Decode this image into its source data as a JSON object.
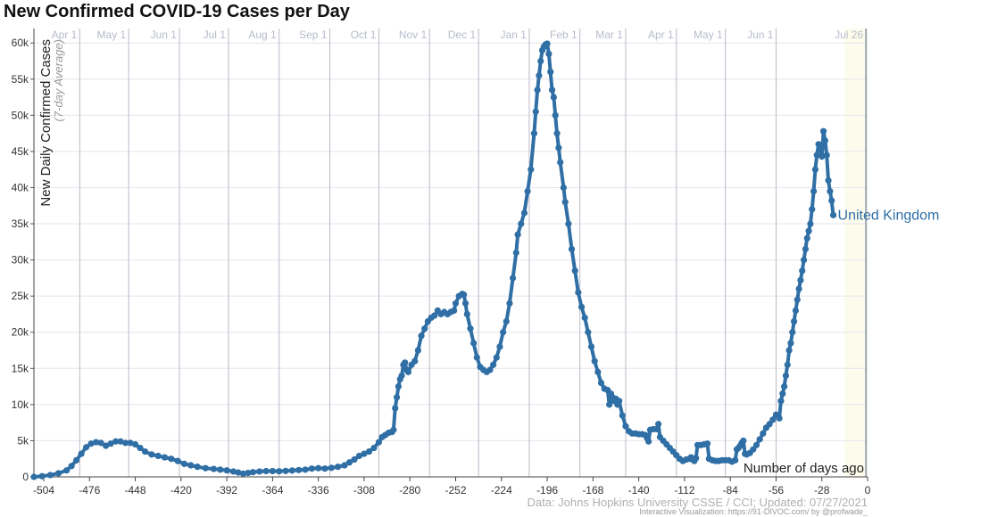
{
  "title": "New Confirmed COVID-19 Cases per Day",
  "source": "Data: Johns Hopkins University CSSE / CCI; Updated: 07/27/2021",
  "credit": "Interactive Visualization: https://91-DIVOC.com/ by @profwade_",
  "colors": {
    "series": "#2f6fa5",
    "label": "#2f6fa5",
    "grid": "#e5e5ec",
    "month": "#b9b9c8",
    "tick": "#8f97a8",
    "highlight": "#fdfcec"
  },
  "chart_data": {
    "type": "line",
    "title": "New Confirmed COVID-19 Cases per Day",
    "xlabel": "Number of days ago",
    "ylabel": "New Daily Confirmed Cases",
    "ylabel_sub": "(7-day Average)",
    "xlim": [
      -510,
      0
    ],
    "ylim": [
      0,
      62000
    ],
    "x_ticks": [
      -504,
      -476,
      -448,
      -420,
      -392,
      -364,
      -336,
      -308,
      -280,
      -252,
      -224,
      -196,
      -168,
      -140,
      -112,
      -84,
      -56,
      -28,
      0
    ],
    "y_ticks": [
      {
        "value": 0,
        "label": "0"
      },
      {
        "value": 5000,
        "label": "5k"
      },
      {
        "value": 10000,
        "label": "10k"
      },
      {
        "value": 15000,
        "label": "15k"
      },
      {
        "value": 20000,
        "label": "20k"
      },
      {
        "value": 25000,
        "label": "25k"
      },
      {
        "value": 30000,
        "label": "30k"
      },
      {
        "value": 35000,
        "label": "35k"
      },
      {
        "value": 40000,
        "label": "40k"
      },
      {
        "value": 45000,
        "label": "45k"
      },
      {
        "value": 50000,
        "label": "50k"
      },
      {
        "value": 55000,
        "label": "55k"
      },
      {
        "value": 60000,
        "label": "60k"
      }
    ],
    "month_lines": [
      {
        "label": "Apr 1",
        "x": -482
      },
      {
        "label": "May 1",
        "x": -452
      },
      {
        "label": "Jun 1",
        "x": -421
      },
      {
        "label": "Jul 1",
        "x": -391
      },
      {
        "label": "Aug 1",
        "x": -360
      },
      {
        "label": "Sep 1",
        "x": -329
      },
      {
        "label": "Oct 1",
        "x": -299
      },
      {
        "label": "Nov 1",
        "x": -268
      },
      {
        "label": "Dec 1",
        "x": -238
      },
      {
        "label": "Jan 1",
        "x": -207
      },
      {
        "label": "Feb 1",
        "x": -176
      },
      {
        "label": "Mar 1",
        "x": -148
      },
      {
        "label": "Apr 1",
        "x": -117
      },
      {
        "label": "May 1",
        "x": -87
      },
      {
        "label": "Jun 1",
        "x": -56
      },
      {
        "label": "Jul 26",
        "x": -1
      }
    ],
    "highlight_range": [
      -14,
      0
    ],
    "series": [
      {
        "name": "United Kingdom",
        "points": [
          [
            -510,
            0
          ],
          [
            -505,
            100
          ],
          [
            -500,
            250
          ],
          [
            -495,
            500
          ],
          [
            -490,
            900
          ],
          [
            -487,
            1500
          ],
          [
            -484,
            2300
          ],
          [
            -481,
            3200
          ],
          [
            -478,
            4100
          ],
          [
            -475,
            4600
          ],
          [
            -472,
            4800
          ],
          [
            -469,
            4700
          ],
          [
            -466,
            4300
          ],
          [
            -463,
            4600
          ],
          [
            -460,
            4900
          ],
          [
            -457,
            4900
          ],
          [
            -454,
            4700
          ],
          [
            -451,
            4700
          ],
          [
            -448,
            4500
          ],
          [
            -445,
            4000
          ],
          [
            -442,
            3500
          ],
          [
            -438,
            3100
          ],
          [
            -434,
            2900
          ],
          [
            -430,
            2700
          ],
          [
            -426,
            2500
          ],
          [
            -422,
            2200
          ],
          [
            -418,
            1800
          ],
          [
            -414,
            1600
          ],
          [
            -410,
            1400
          ],
          [
            -405,
            1200
          ],
          [
            -400,
            1100
          ],
          [
            -396,
            1000
          ],
          [
            -392,
            900
          ],
          [
            -388,
            750
          ],
          [
            -385,
            600
          ],
          [
            -382,
            450
          ],
          [
            -379,
            550
          ],
          [
            -376,
            650
          ],
          [
            -372,
            750
          ],
          [
            -368,
            800
          ],
          [
            -364,
            800
          ],
          [
            -360,
            780
          ],
          [
            -356,
            820
          ],
          [
            -352,
            880
          ],
          [
            -348,
            950
          ],
          [
            -344,
            1000
          ],
          [
            -340,
            1150
          ],
          [
            -336,
            1200
          ],
          [
            -332,
            1150
          ],
          [
            -328,
            1250
          ],
          [
            -324,
            1400
          ],
          [
            -320,
            1600
          ],
          [
            -317,
            2000
          ],
          [
            -314,
            2400
          ],
          [
            -311,
            2900
          ],
          [
            -308,
            3200
          ],
          [
            -305,
            3500
          ],
          [
            -302,
            4000
          ],
          [
            -299,
            4800
          ],
          [
            -297,
            5500
          ],
          [
            -295,
            5800
          ],
          [
            -293,
            6100
          ],
          [
            -291,
            6200
          ],
          [
            -290,
            6500
          ],
          [
            -289,
            9500
          ],
          [
            -288,
            11000
          ],
          [
            -287,
            12500
          ],
          [
            -286,
            13500
          ],
          [
            -285,
            14000
          ],
          [
            -284,
            15500
          ],
          [
            -283,
            15800
          ],
          [
            -282,
            14800
          ],
          [
            -281,
            14500
          ],
          [
            -279,
            15500
          ],
          [
            -277,
            16000
          ],
          [
            -275,
            17500
          ],
          [
            -273,
            19500
          ],
          [
            -271,
            20500
          ],
          [
            -269,
            21500
          ],
          [
            -267,
            22000
          ],
          [
            -265,
            22300
          ],
          [
            -263,
            23000
          ],
          [
            -261,
            22500
          ],
          [
            -259,
            22800
          ],
          [
            -257,
            22500
          ],
          [
            -255,
            22800
          ],
          [
            -253,
            23000
          ],
          [
            -252,
            24000
          ],
          [
            -250,
            25000
          ],
          [
            -248,
            25300
          ],
          [
            -247,
            25200
          ],
          [
            -246,
            24000
          ],
          [
            -245,
            22500
          ],
          [
            -243,
            20500
          ],
          [
            -241,
            18500
          ],
          [
            -239,
            16500
          ],
          [
            -237,
            15200
          ],
          [
            -235,
            14800
          ],
          [
            -233,
            14500
          ],
          [
            -231,
            14800
          ],
          [
            -229,
            15500
          ],
          [
            -227,
            16500
          ],
          [
            -225,
            18000
          ],
          [
            -223,
            20000
          ],
          [
            -221,
            21500
          ],
          [
            -219,
            24000
          ],
          [
            -217,
            27500
          ],
          [
            -215,
            31000
          ],
          [
            -214,
            33500
          ],
          [
            -212,
            35000
          ],
          [
            -210,
            36500
          ],
          [
            -208,
            39500
          ],
          [
            -206,
            42500
          ],
          [
            -204,
            47500
          ],
          [
            -203,
            50500
          ],
          [
            -202,
            53500
          ],
          [
            -201,
            55500
          ],
          [
            -200,
            57500
          ],
          [
            -199,
            59000
          ],
          [
            -198,
            59500
          ],
          [
            -197,
            59800
          ],
          [
            -196,
            59900
          ],
          [
            -195,
            58500
          ],
          [
            -194,
            56000
          ],
          [
            -193,
            53500
          ],
          [
            -192,
            52500
          ],
          [
            -191,
            50000
          ],
          [
            -190,
            47500
          ],
          [
            -189,
            45500
          ],
          [
            -188,
            43500
          ],
          [
            -186,
            40000
          ],
          [
            -185,
            38000
          ],
          [
            -183,
            35000
          ],
          [
            -181,
            31500
          ],
          [
            -179,
            28500
          ],
          [
            -177,
            25500
          ],
          [
            -175,
            23500
          ],
          [
            -173,
            22000
          ],
          [
            -171,
            20000
          ],
          [
            -169,
            18000
          ],
          [
            -167,
            16000
          ],
          [
            -165,
            14500
          ],
          [
            -163,
            13000
          ],
          [
            -161,
            12200
          ],
          [
            -159,
            12000
          ],
          [
            -158,
            10000
          ],
          [
            -157,
            11500
          ],
          [
            -156,
            11000
          ],
          [
            -155,
            10500
          ],
          [
            -154,
            10800
          ],
          [
            -153,
            10000
          ],
          [
            -152,
            10500
          ],
          [
            -150,
            8500
          ],
          [
            -148,
            7000
          ],
          [
            -146,
            6300
          ],
          [
            -144,
            6000
          ],
          [
            -142,
            6000
          ],
          [
            -140,
            5900
          ],
          [
            -138,
            5900
          ],
          [
            -136,
            5800
          ],
          [
            -135,
            5400
          ],
          [
            -134,
            4900
          ],
          [
            -133,
            6500
          ],
          [
            -131,
            6600
          ],
          [
            -129,
            6600
          ],
          [
            -128,
            7300
          ],
          [
            -127,
            5500
          ],
          [
            -125,
            5000
          ],
          [
            -123,
            4500
          ],
          [
            -121,
            4000
          ],
          [
            -119,
            3500
          ],
          [
            -117,
            3000
          ],
          [
            -115,
            2500
          ],
          [
            -113,
            2200
          ],
          [
            -111,
            2400
          ],
          [
            -109,
            2500
          ],
          [
            -108,
            2700
          ],
          [
            -107,
            2400
          ],
          [
            -106,
            2200
          ],
          [
            -105,
            2600
          ],
          [
            -104,
            4400
          ],
          [
            -102,
            4400
          ],
          [
            -100,
            4500
          ],
          [
            -98,
            4600
          ],
          [
            -97,
            2500
          ],
          [
            -95,
            2300
          ],
          [
            -93,
            2200
          ],
          [
            -91,
            2200
          ],
          [
            -89,
            2300
          ],
          [
            -87,
            2300
          ],
          [
            -85,
            2300
          ],
          [
            -83,
            2100
          ],
          [
            -81,
            2300
          ],
          [
            -80,
            3800
          ],
          [
            -79,
            4000
          ],
          [
            -78,
            4300
          ],
          [
            -77,
            4700
          ],
          [
            -76,
            5000
          ],
          [
            -75,
            3200
          ],
          [
            -74,
            3100
          ],
          [
            -72,
            3300
          ],
          [
            -70,
            3800
          ],
          [
            -68,
            4400
          ],
          [
            -66,
            5200
          ],
          [
            -64,
            6000
          ],
          [
            -62,
            6800
          ],
          [
            -60,
            7300
          ],
          [
            -58,
            7900
          ],
          [
            -56,
            8600
          ],
          [
            -54,
            8100
          ],
          [
            -53,
            10500
          ],
          [
            -52,
            11500
          ],
          [
            -51,
            12500
          ],
          [
            -50,
            14000
          ],
          [
            -49,
            15500
          ],
          [
            -48,
            17500
          ],
          [
            -47,
            18500
          ],
          [
            -46,
            20000
          ],
          [
            -45,
            21500
          ],
          [
            -44,
            23000
          ],
          [
            -43,
            24500
          ],
          [
            -42,
            26000
          ],
          [
            -41,
            27200
          ],
          [
            -40,
            28500
          ],
          [
            -39,
            30000
          ],
          [
            -38,
            31500
          ],
          [
            -37,
            33000
          ],
          [
            -36,
            34000
          ],
          [
            -35,
            35000
          ],
          [
            -34,
            37000
          ],
          [
            -33,
            39500
          ],
          [
            -32,
            42500
          ],
          [
            -31,
            44500
          ],
          [
            -30,
            46000
          ],
          [
            -29,
            45800
          ],
          [
            -28,
            44300
          ],
          [
            -27,
            47800
          ],
          [
            -26,
            46500
          ],
          [
            -25,
            44500
          ],
          [
            -24,
            41000
          ],
          [
            -23,
            39500
          ],
          [
            -22,
            38200
          ],
          [
            -21,
            36200
          ]
        ],
        "end_label": "United Kingdom"
      }
    ]
  }
}
